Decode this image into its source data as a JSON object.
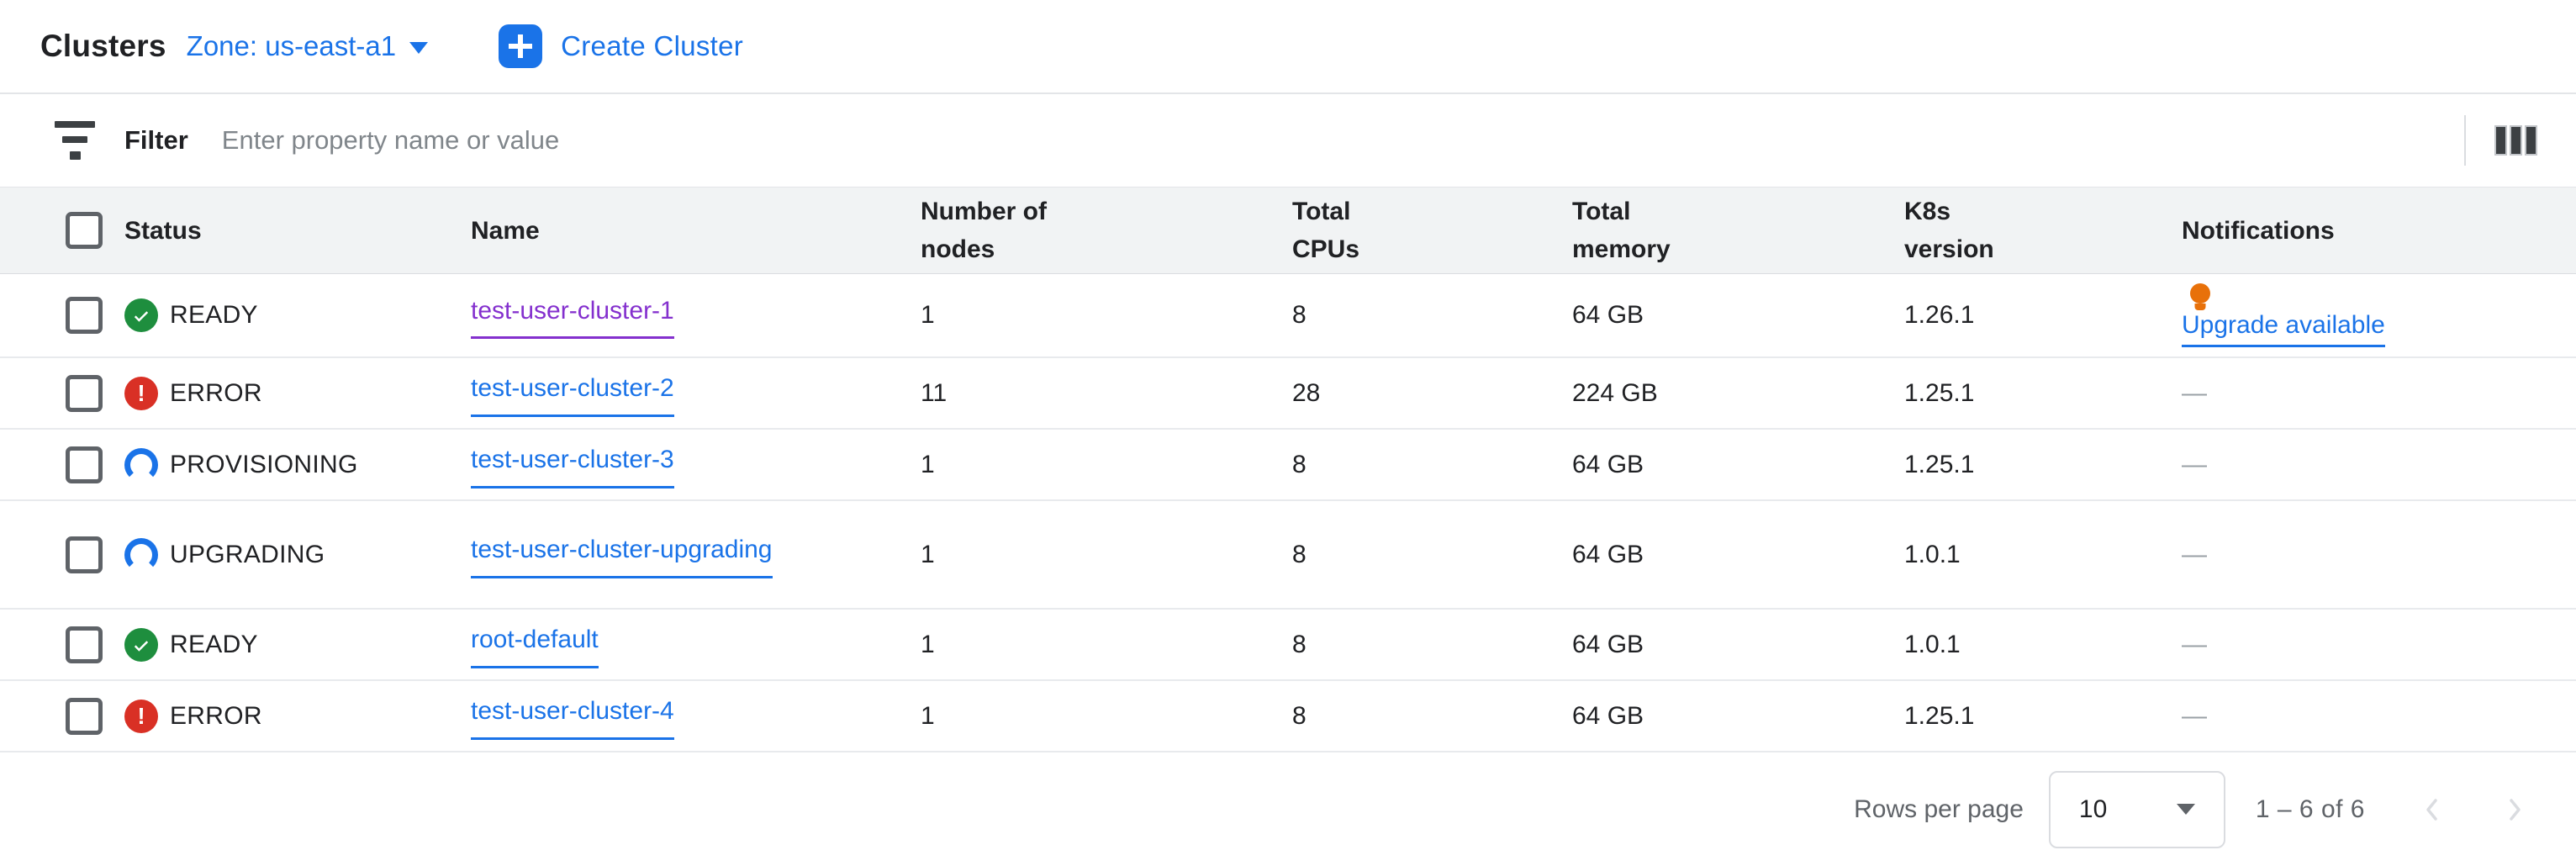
{
  "header": {
    "title": "Clusters",
    "zone_label": "Zone: us-east-a1",
    "create_button": "Create Cluster"
  },
  "filter": {
    "label": "Filter",
    "placeholder": "Enter property name or value",
    "input_value": ""
  },
  "table": {
    "columns": [
      "Status",
      "Name",
      "Number of nodes",
      "Total CPUs",
      "Total memory",
      "K8s version",
      "Notifications"
    ],
    "rows": [
      {
        "status": "READY",
        "status_kind": "ready",
        "name": "test-user-cluster-1",
        "visited": true,
        "nodes": "1",
        "cpus": "8",
        "memory": "64 GB",
        "k8s": "1.26.1",
        "notification": "Upgrade available",
        "has_upgrade": true
      },
      {
        "status": "ERROR",
        "status_kind": "error",
        "name": "test-user-cluster-2",
        "visited": false,
        "nodes": "11",
        "cpus": "28",
        "memory": "224 GB",
        "k8s": "1.25.1",
        "notification": "—",
        "has_upgrade": false
      },
      {
        "status": "PROVISIONING",
        "status_kind": "progress",
        "name": "test-user-cluster-3",
        "visited": false,
        "nodes": "1",
        "cpus": "8",
        "memory": "64 GB",
        "k8s": "1.25.1",
        "notification": "—",
        "has_upgrade": false
      },
      {
        "status": "UPGRADING",
        "status_kind": "progress",
        "name": "test-user-cluster-upgrading",
        "visited": false,
        "nodes": "1",
        "cpus": "8",
        "memory": "64 GB",
        "k8s": "1.0.1",
        "notification": "—",
        "has_upgrade": false
      },
      {
        "status": "READY",
        "status_kind": "ready",
        "name": "root-default",
        "visited": false,
        "nodes": "1",
        "cpus": "8",
        "memory": "64 GB",
        "k8s": "1.0.1",
        "notification": "—",
        "has_upgrade": false
      },
      {
        "status": "ERROR",
        "status_kind": "error",
        "name": "test-user-cluster-4",
        "visited": false,
        "nodes": "1",
        "cpus": "8",
        "memory": "64 GB",
        "k8s": "1.25.1",
        "notification": "—",
        "has_upgrade": false
      }
    ]
  },
  "footer": {
    "rows_per_page_label": "Rows per page",
    "rows_per_page_value": "10",
    "range": "1 – 6 of 6"
  },
  "icons": {
    "filter": "filter-list-icon",
    "columns": "column-display-options-icon",
    "plus": "plus-icon",
    "ready": "green-check-circle-icon",
    "error": "red-exclamation-circle-icon",
    "progress": "blue-spinner-icon",
    "upgrade": "lightbulb-icon",
    "pager_prev": "chevron-left-icon",
    "pager_next": "chevron-right-icon"
  },
  "colors": {
    "accent_blue": "#1a73e8",
    "visited_purple": "#8430ce",
    "ready_green": "#1e8e3e",
    "error_red": "#d93025",
    "bulb_orange": "#e8710a",
    "header_bg": "#f1f3f4",
    "divider": "#dadce0",
    "text_primary": "#202124",
    "text_secondary": "#5f6368"
  }
}
